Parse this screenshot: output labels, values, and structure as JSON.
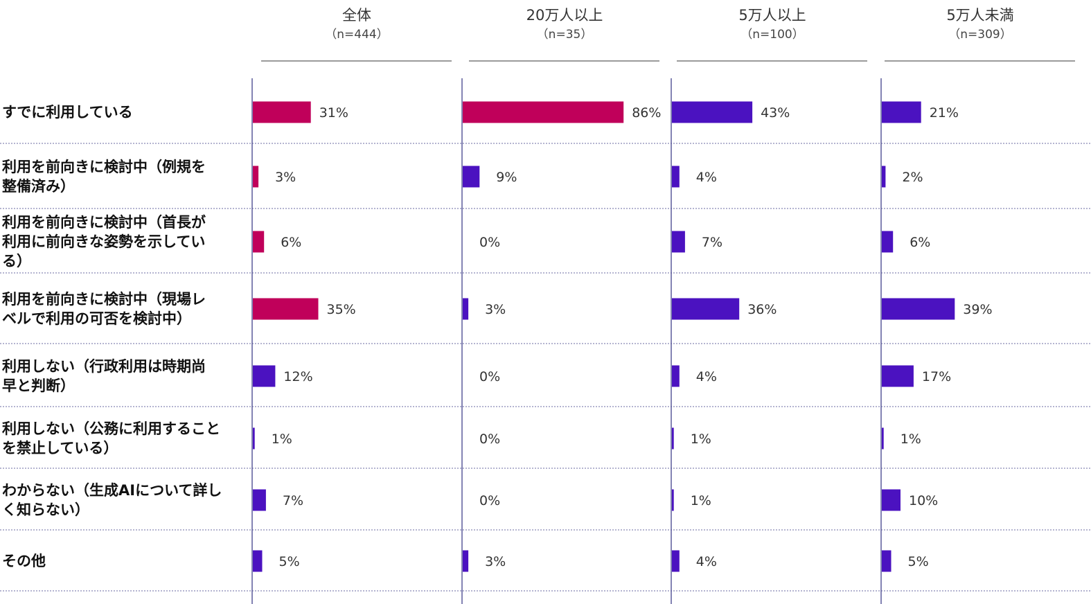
{
  "chart_data": {
    "type": "bar",
    "orientation": "horizontal",
    "categories": [
      "すでに利用している",
      "利用を前向きに検討中（例規を整備済み）",
      "利用を前向きに検討中（首長が利用に前向きな姿勢を示している）",
      "利用を前向きに検討中（現場レベルで利用の可否を検討中）",
      "利用しない（行政利用は時期尚早と判断）",
      "利用しない（公務に利用することを禁止している）",
      "わからない（生成AIについて詳しく知らない）",
      "その他"
    ],
    "category_lines": [
      [
        "すでに利用している"
      ],
      [
        "利用を前向きに検討中（例規を",
        "整備済み）"
      ],
      [
        "利用を前向きに検討中（首長が",
        "利用に前向きな姿勢を示してい",
        "る）"
      ],
      [
        "利用を前向きに検討中（現場レ",
        "ベルで利用の可否を検討中）"
      ],
      [
        "利用しない（行政利用は時期尚",
        "早と判断）"
      ],
      [
        "利用しない（公務に利用すること",
        "を禁止している）"
      ],
      [
        "わからない（生成AIについて詳し",
        "く知らない）"
      ],
      [
        "その他"
      ]
    ],
    "series": [
      {
        "name": "全体",
        "n_label": "（n=444）",
        "values": [
          31,
          3,
          6,
          35,
          12,
          1,
          7,
          5
        ],
        "labels": [
          "31%",
          "3%",
          "6%",
          "35%",
          "12%",
          "1%",
          "7%",
          "5%"
        ]
      },
      {
        "name": "20万人以上",
        "n_label": "（n=35）",
        "values": [
          86,
          9,
          0,
          3,
          0,
          0,
          0,
          3
        ],
        "labels": [
          "86%",
          "9%",
          "0%",
          "3%",
          "0%",
          "0%",
          "0%",
          "3%"
        ]
      },
      {
        "name": "5万人以上",
        "n_label": "（n=100）",
        "values": [
          43,
          4,
          7,
          36,
          4,
          1,
          1,
          4
        ],
        "labels": [
          "43%",
          "4%",
          "7%",
          "36%",
          "4%",
          "1%",
          "1%",
          "4%"
        ]
      },
      {
        "name": "5万人未満",
        "n_label": "（n=309）",
        "values": [
          21,
          2,
          6,
          39,
          17,
          1,
          10,
          5
        ],
        "labels": [
          "21%",
          "2%",
          "6%",
          "39%",
          "17%",
          "1%",
          "10%",
          "5%"
        ]
      }
    ],
    "highlight": [
      [
        true,
        true,
        true,
        true,
        false,
        false,
        false,
        false
      ],
      [
        true,
        false,
        false,
        false,
        false,
        false,
        false,
        false
      ],
      [
        false,
        false,
        false,
        false,
        false,
        false,
        false,
        false
      ],
      [
        false,
        false,
        false,
        false,
        false,
        false,
        false,
        false
      ]
    ],
    "colors": {
      "highlight": "#c0005a",
      "normal": "#4b12c0",
      "axis": "#5a5a9a",
      "divider": "#6a6aa0",
      "header_rule": "#7a7a7a"
    },
    "xlim": [
      0,
      100
    ],
    "legend": "none",
    "grid": false
  }
}
